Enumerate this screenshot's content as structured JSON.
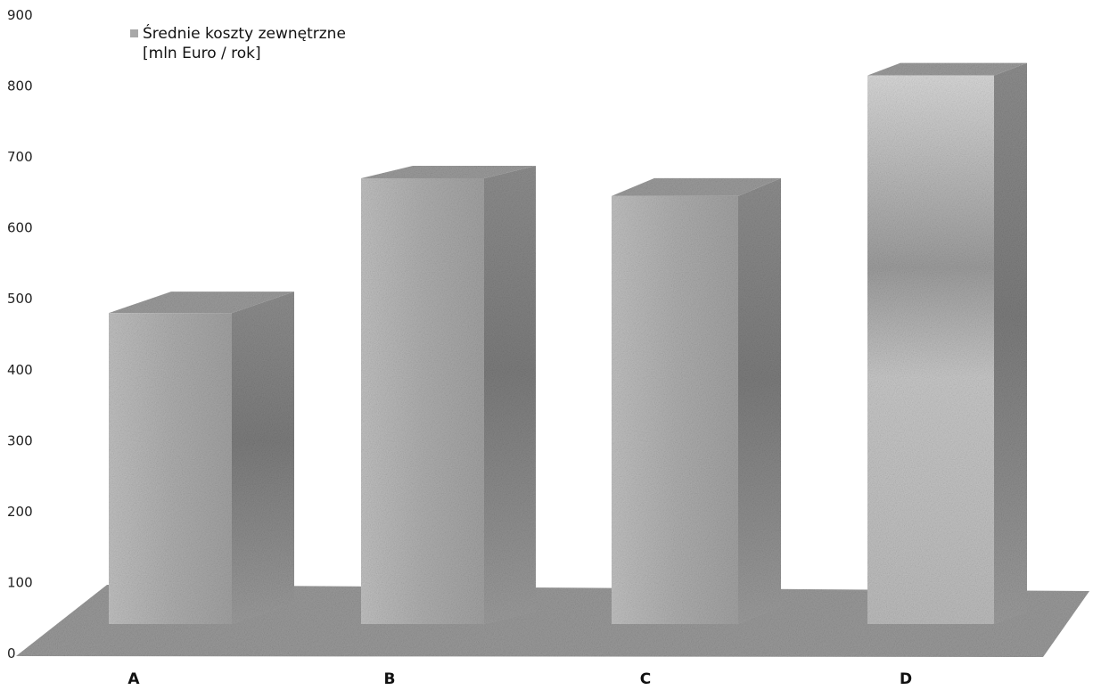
{
  "chart_data": {
    "type": "bar",
    "categories": [
      "A",
      "B",
      "C",
      "D"
    ],
    "series": [
      {
        "name": "Średnie koszty zewnętrzne [mln Euro / rok]",
        "values": [
          480,
          670,
          645,
          815
        ]
      }
    ],
    "legend": {
      "line1": "Średnie koszty zewnętrzne",
      "line2": "[mln Euro / rok]",
      "placement": "top-left"
    },
    "yticks": [
      "0",
      "100",
      "200",
      "300",
      "400",
      "500",
      "600",
      "700",
      "800",
      "900"
    ],
    "ylim": [
      0,
      900
    ],
    "grid": false,
    "style": "3d",
    "colors": {
      "bar_front": "#b2b2b2",
      "bar_side": "#8e8e8e",
      "bar_top": "#9c9c9c",
      "floor": "#9a9a9a"
    }
  }
}
